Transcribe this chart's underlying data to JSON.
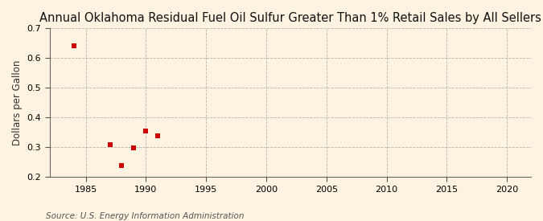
{
  "title": "Annual Oklahoma Residual Fuel Oil Sulfur Greater Than 1% Retail Sales by All Sellers",
  "ylabel": "Dollars per Gallon",
  "source": "Source: U.S. Energy Information Administration",
  "x_data": [
    1984,
    1987,
    1988,
    1989,
    1990,
    1991
  ],
  "y_data": [
    0.641,
    0.31,
    0.238,
    0.298,
    0.356,
    0.338
  ],
  "xlim": [
    1982,
    2022
  ],
  "ylim": [
    0.2,
    0.7
  ],
  "yticks": [
    0.2,
    0.3,
    0.4,
    0.5,
    0.6,
    0.7
  ],
  "xticks": [
    1985,
    1990,
    1995,
    2000,
    2005,
    2010,
    2015,
    2020
  ],
  "marker_color": "#cc0000",
  "marker": "s",
  "marker_size": 16,
  "bg_color": "#fdf3e0",
  "grid_color": "#999999",
  "title_fontsize": 10.5,
  "label_fontsize": 8.5,
  "tick_fontsize": 8,
  "source_fontsize": 7.5
}
